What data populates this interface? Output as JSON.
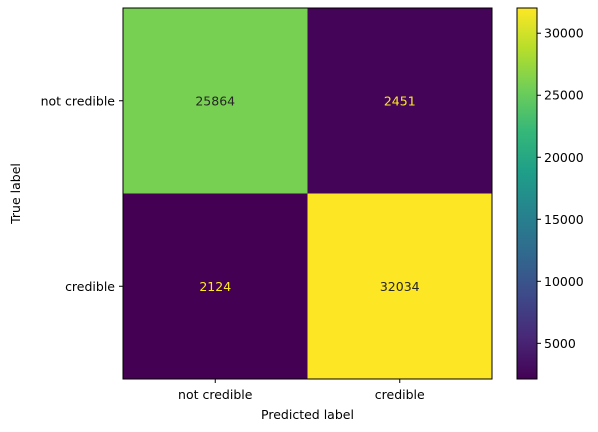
{
  "chart_data": {
    "type": "heatmap",
    "title": "",
    "xlabel": "Predicted label",
    "ylabel": "True label",
    "x_categories": [
      "not credible",
      "credible"
    ],
    "y_categories": [
      "not credible",
      "credible"
    ],
    "matrix": [
      [
        25864,
        2451
      ],
      [
        2124,
        32034
      ]
    ],
    "colormap": "viridis",
    "colorbar": {
      "min": 2124,
      "max": 32034,
      "ticks": [
        5000,
        10000,
        15000,
        20000,
        25000,
        30000
      ],
      "tick_labels": [
        "5000",
        "10000",
        "15000",
        "20000",
        "25000",
        "30000"
      ]
    },
    "text_colors": {
      "on_dark": "#fde725",
      "on_light": "#262626"
    },
    "grid": false
  }
}
